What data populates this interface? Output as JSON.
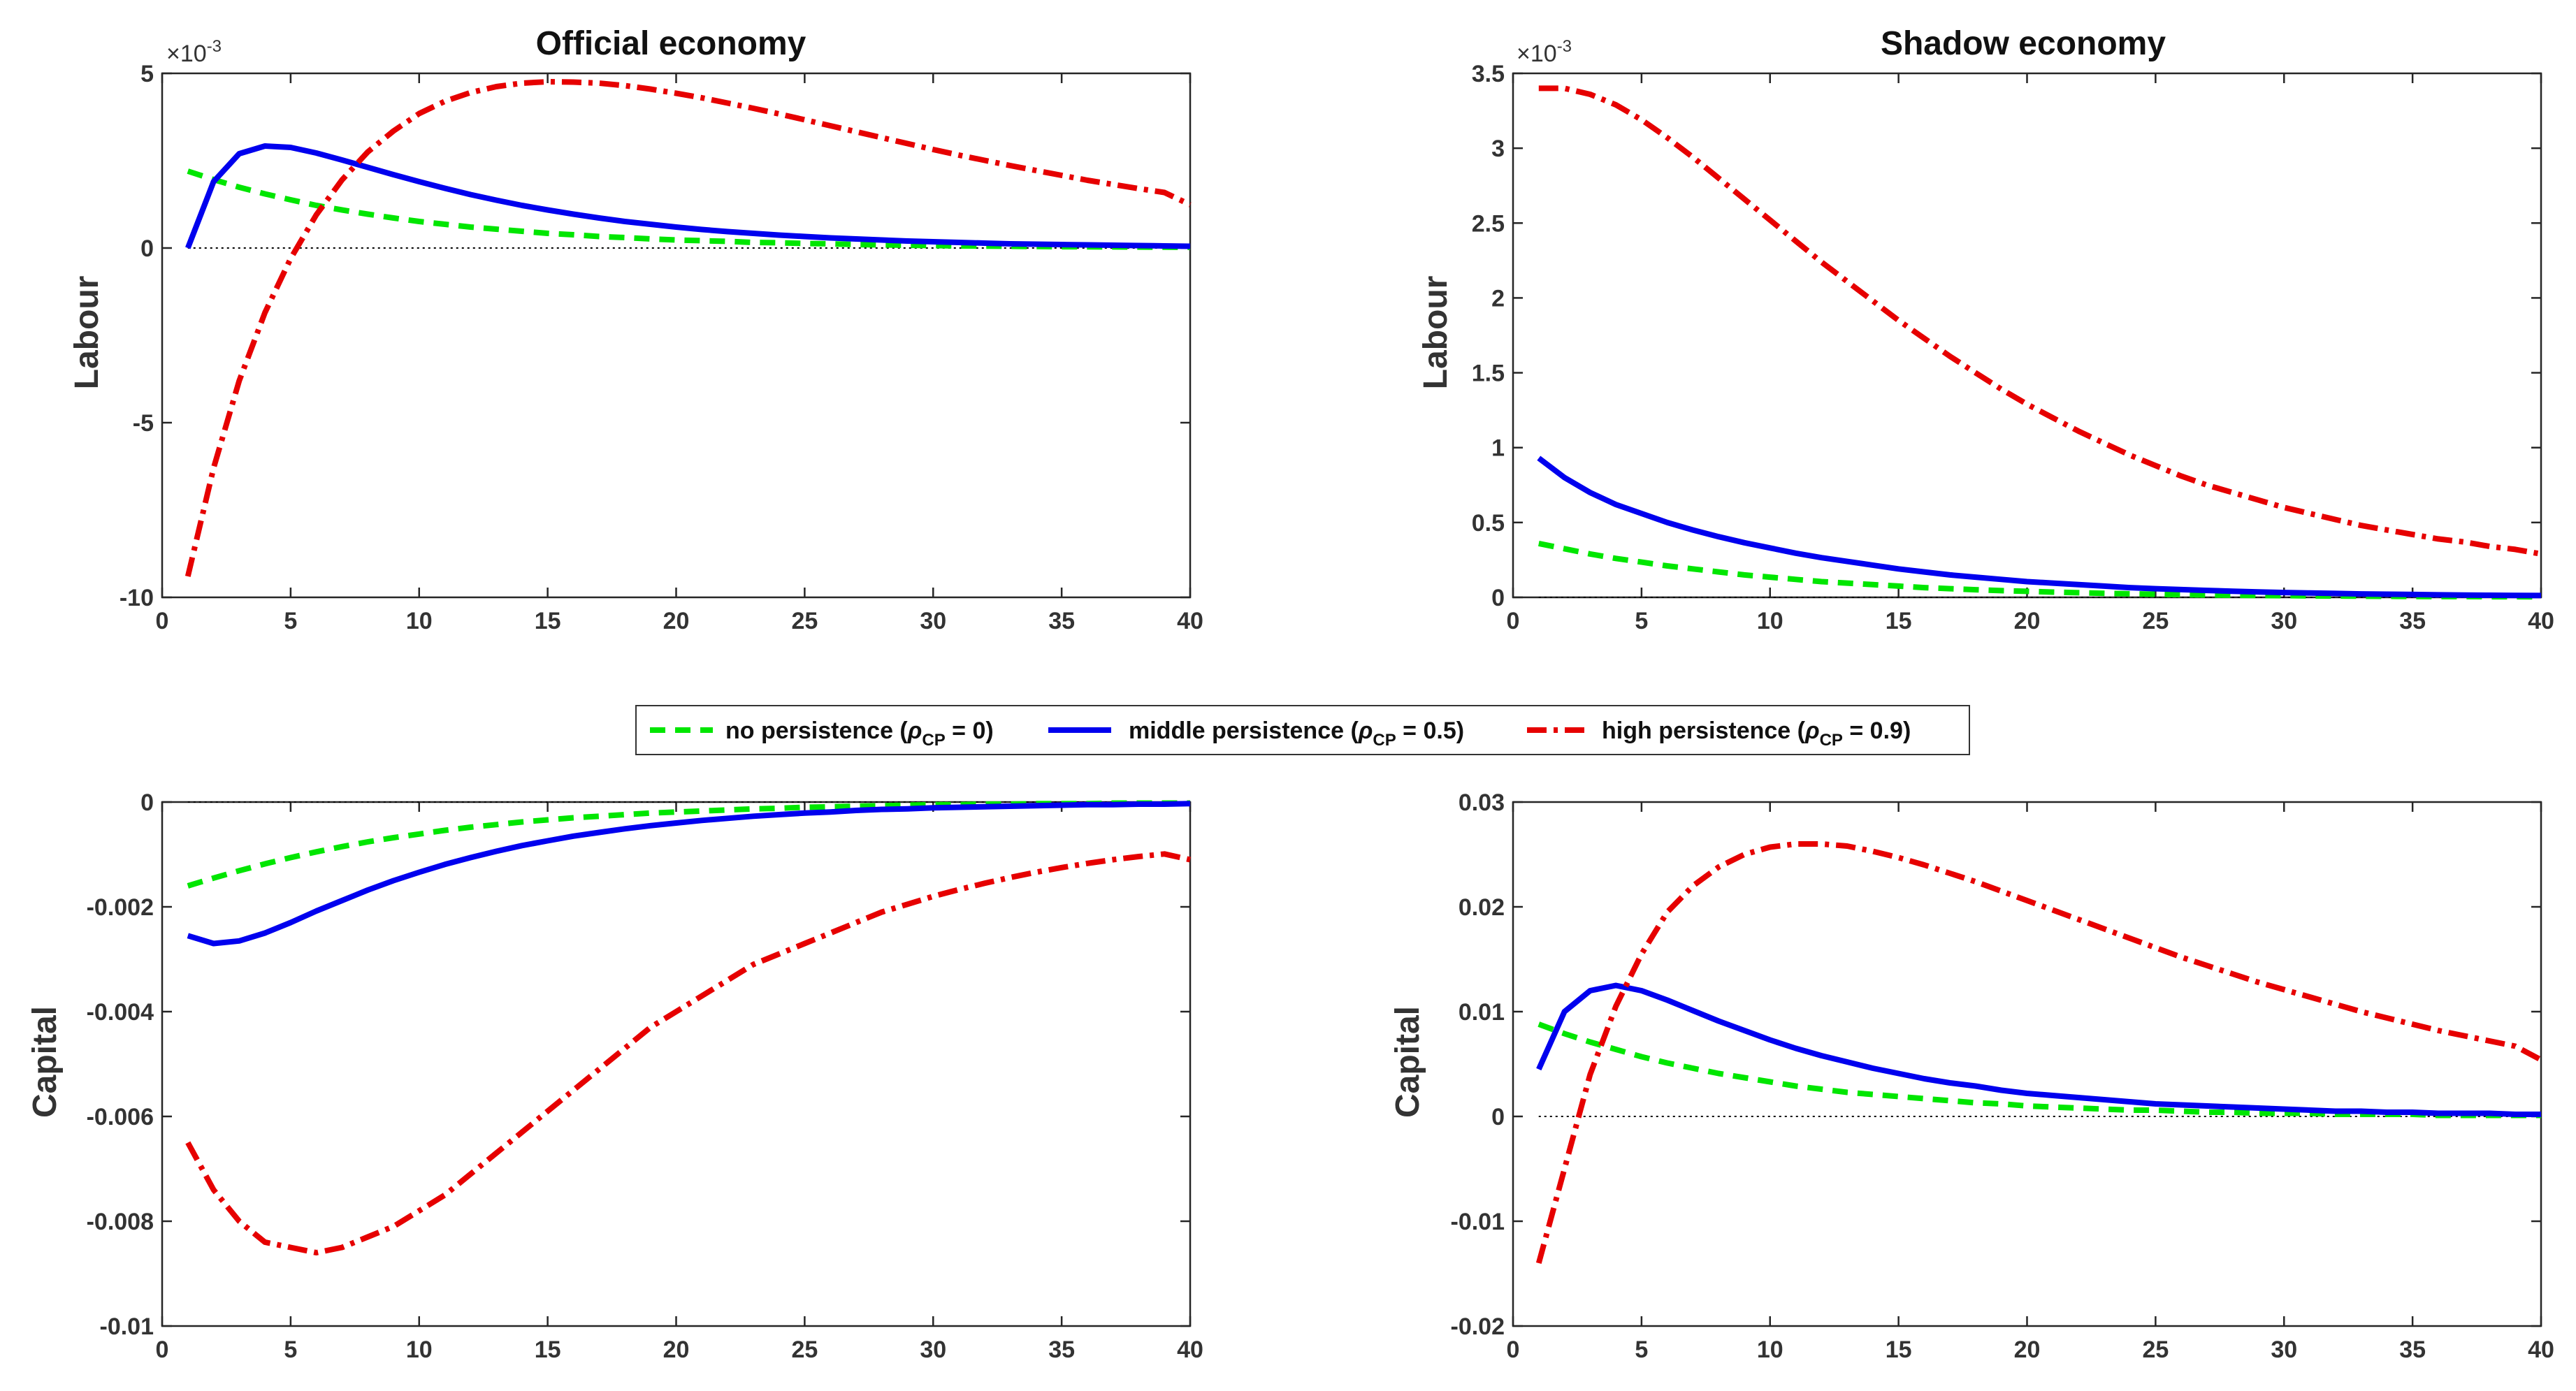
{
  "figure": {
    "legend": [
      {
        "name": "no persistence",
        "rho": "0",
        "color": "#00e600",
        "style": "dashed"
      },
      {
        "name": "middle persistence",
        "rho": "0.5",
        "color": "#0000ee",
        "style": "solid"
      },
      {
        "name": "high persistence",
        "rho": "0.9",
        "color": "#e60000",
        "style": "dashdot"
      }
    ],
    "legend_subscript": "CP"
  },
  "chart_data": [
    {
      "type": "line",
      "title": "Official economy",
      "xlabel": "",
      "ylabel": "Labour",
      "exponent_label": "×10",
      "exponent_power": "-3",
      "xlim": [
        0,
        40
      ],
      "ylim": [
        -10,
        5
      ],
      "xticks": [
        "0",
        "5",
        "10",
        "15",
        "20",
        "25",
        "30",
        "35",
        "40"
      ],
      "yticks": [
        "-10",
        "-5",
        "0",
        "5"
      ],
      "x": [
        1,
        2,
        3,
        4,
        5,
        6,
        7,
        8,
        9,
        10,
        11,
        12,
        13,
        14,
        15,
        16,
        17,
        18,
        19,
        20,
        21,
        22,
        23,
        24,
        25,
        26,
        27,
        28,
        29,
        30,
        31,
        32,
        33,
        34,
        35,
        36,
        37,
        38,
        39,
        40
      ],
      "series": [
        {
          "name": "no persistence",
          "values": [
            2.2,
            1.96,
            1.74,
            1.55,
            1.38,
            1.22,
            1.09,
            0.97,
            0.86,
            0.76,
            0.68,
            0.6,
            0.54,
            0.48,
            0.42,
            0.38,
            0.33,
            0.3,
            0.26,
            0.23,
            0.21,
            0.19,
            0.16,
            0.15,
            0.13,
            0.12,
            0.1,
            0.09,
            0.08,
            0.07,
            0.06,
            0.056,
            0.05,
            0.044,
            0.039,
            0.035,
            0.031,
            0.028,
            0.025,
            0.022
          ]
        },
        {
          "name": "middle persistence",
          "values": [
            0,
            1.9,
            2.7,
            2.92,
            2.88,
            2.72,
            2.52,
            2.31,
            2.1,
            1.9,
            1.71,
            1.53,
            1.37,
            1.22,
            1.09,
            0.97,
            0.86,
            0.76,
            0.68,
            0.6,
            0.53,
            0.47,
            0.42,
            0.37,
            0.33,
            0.29,
            0.26,
            0.23,
            0.2,
            0.18,
            0.16,
            0.14,
            0.12,
            0.11,
            0.1,
            0.09,
            0.08,
            0.07,
            0.06,
            0.05
          ]
        },
        {
          "name": "high persistence",
          "values": [
            -9.4,
            -6.3,
            -3.8,
            -1.85,
            -0.3,
            0.95,
            1.95,
            2.75,
            3.35,
            3.85,
            4.2,
            4.45,
            4.62,
            4.72,
            4.76,
            4.75,
            4.72,
            4.65,
            4.55,
            4.43,
            4.3,
            4.15,
            4.0,
            3.84,
            3.67,
            3.5,
            3.33,
            3.16,
            2.99,
            2.82,
            2.66,
            2.51,
            2.36,
            2.22,
            2.08,
            1.94,
            1.82,
            1.7,
            1.59,
            1.24
          ]
        }
      ]
    },
    {
      "type": "line",
      "title": "Shadow economy",
      "xlabel": "",
      "ylabel": "Labour",
      "exponent_label": "×10",
      "exponent_power": "-3",
      "xlim": [
        0,
        40
      ],
      "ylim": [
        0,
        3.5
      ],
      "xticks": [
        "0",
        "5",
        "10",
        "15",
        "20",
        "25",
        "30",
        "35",
        "40"
      ],
      "yticks": [
        "0",
        "0.5",
        "1",
        "1.5",
        "2",
        "2.5",
        "3",
        "3.5"
      ],
      "x": [
        1,
        2,
        3,
        4,
        5,
        6,
        7,
        8,
        9,
        10,
        11,
        12,
        13,
        14,
        15,
        16,
        17,
        18,
        19,
        20,
        21,
        22,
        23,
        24,
        25,
        26,
        27,
        28,
        29,
        30,
        31,
        32,
        33,
        34,
        35,
        36,
        37,
        38,
        39,
        40
      ],
      "series": [
        {
          "name": "no persistence",
          "values": [
            0.36,
            0.325,
            0.29,
            0.26,
            0.235,
            0.21,
            0.19,
            0.17,
            0.15,
            0.135,
            0.12,
            0.105,
            0.095,
            0.085,
            0.075,
            0.065,
            0.058,
            0.051,
            0.045,
            0.04,
            0.035,
            0.031,
            0.027,
            0.024,
            0.021,
            0.018,
            0.016,
            0.014,
            0.012,
            0.011,
            0.01,
            0.009,
            0.008,
            0.007,
            0.006,
            0.005,
            0.005,
            0.004,
            0.004,
            0.003
          ]
        },
        {
          "name": "middle persistence",
          "values": [
            0.93,
            0.8,
            0.7,
            0.62,
            0.56,
            0.5,
            0.45,
            0.405,
            0.365,
            0.33,
            0.295,
            0.265,
            0.24,
            0.215,
            0.19,
            0.17,
            0.15,
            0.135,
            0.12,
            0.105,
            0.095,
            0.085,
            0.075,
            0.065,
            0.058,
            0.052,
            0.046,
            0.041,
            0.036,
            0.032,
            0.029,
            0.026,
            0.023,
            0.021,
            0.019,
            0.017,
            0.015,
            0.014,
            0.013,
            0.012
          ]
        },
        {
          "name": "high persistence",
          "values": [
            3.4,
            3.4,
            3.36,
            3.29,
            3.19,
            3.07,
            2.94,
            2.8,
            2.66,
            2.52,
            2.38,
            2.24,
            2.11,
            1.98,
            1.85,
            1.73,
            1.61,
            1.5,
            1.39,
            1.29,
            1.2,
            1.11,
            1.03,
            0.95,
            0.88,
            0.81,
            0.75,
            0.7,
            0.65,
            0.6,
            0.56,
            0.52,
            0.48,
            0.45,
            0.42,
            0.39,
            0.37,
            0.34,
            0.32,
            0.29
          ]
        }
      ]
    },
    {
      "type": "line",
      "title": "",
      "xlabel": "",
      "ylabel": "Capital",
      "xlim": [
        0,
        40
      ],
      "ylim": [
        -0.01,
        0
      ],
      "xticks": [
        "0",
        "5",
        "10",
        "15",
        "20",
        "25",
        "30",
        "35",
        "40"
      ],
      "yticks": [
        "-0.01",
        "-0.008",
        "-0.006",
        "-0.004",
        "-0.002",
        "0"
      ],
      "x": [
        1,
        2,
        3,
        4,
        5,
        6,
        7,
        8,
        9,
        10,
        11,
        12,
        13,
        14,
        15,
        16,
        17,
        18,
        19,
        20,
        21,
        22,
        23,
        24,
        25,
        26,
        27,
        28,
        29,
        30,
        31,
        32,
        33,
        34,
        35,
        36,
        37,
        38,
        39,
        40
      ],
      "series": [
        {
          "name": "no persistence",
          "values": [
            -0.0016,
            -0.00145,
            -0.00131,
            -0.00118,
            -0.00106,
            -0.00095,
            -0.00085,
            -0.00076,
            -0.00068,
            -0.00061,
            -0.00054,
            -0.00048,
            -0.00043,
            -0.00038,
            -0.00034,
            -0.0003,
            -0.00027,
            -0.00024,
            -0.00021,
            -0.00019,
            -0.00017,
            -0.00015,
            -0.00013,
            -0.00012,
            -0.0001,
            -9e-05,
            -8e-05,
            -7e-05,
            -6e-05,
            -5e-05,
            -5e-05,
            -4e-05,
            -4e-05,
            -3e-05,
            -3e-05,
            -3e-05,
            -2e-05,
            -2e-05,
            -2e-05,
            -2e-05
          ]
        },
        {
          "name": "middle persistence",
          "values": [
            -0.00255,
            -0.0027,
            -0.00265,
            -0.0025,
            -0.0023,
            -0.00208,
            -0.00188,
            -0.00168,
            -0.0015,
            -0.00134,
            -0.00119,
            -0.00106,
            -0.00094,
            -0.00083,
            -0.00074,
            -0.00065,
            -0.00058,
            -0.00051,
            -0.00045,
            -0.0004,
            -0.00035,
            -0.00031,
            -0.00027,
            -0.00024,
            -0.00021,
            -0.00019,
            -0.00016,
            -0.00014,
            -0.00013,
            -0.00011,
            -0.0001,
            -9e-05,
            -8e-05,
            -7e-05,
            -6e-05,
            -5e-05,
            -5e-05,
            -4e-05,
            -4e-05,
            -3e-05
          ]
        },
        {
          "name": "high persistence",
          "values": [
            -0.0065,
            -0.0074,
            -0.008,
            -0.0084,
            -0.0085,
            -0.0086,
            -0.0085,
            -0.0083,
            -0.0081,
            -0.0078,
            -0.0075,
            -0.0071,
            -0.0067,
            -0.0063,
            -0.0059,
            -0.0055,
            -0.0051,
            -0.0047,
            -0.0043,
            -0.004,
            -0.0037,
            -0.0034,
            -0.0031,
            -0.0029,
            -0.0027,
            -0.0025,
            -0.0023,
            -0.0021,
            -0.00195,
            -0.0018,
            -0.00167,
            -0.00155,
            -0.00144,
            -0.00134,
            -0.00125,
            -0.00117,
            -0.0011,
            -0.00104,
            -0.00099,
            -0.0011
          ]
        }
      ]
    },
    {
      "type": "line",
      "title": "",
      "xlabel": "",
      "ylabel": "Capital",
      "xlim": [
        0,
        40
      ],
      "ylim": [
        -0.02,
        0.03
      ],
      "xticks": [
        "0",
        "5",
        "10",
        "15",
        "20",
        "25",
        "30",
        "35",
        "40"
      ],
      "yticks": [
        "-0.02",
        "-0.01",
        "0",
        "0.01",
        "0.02",
        "0.03"
      ],
      "x": [
        1,
        2,
        3,
        4,
        5,
        6,
        7,
        8,
        9,
        10,
        11,
        12,
        13,
        14,
        15,
        16,
        17,
        18,
        19,
        20,
        21,
        22,
        23,
        24,
        25,
        26,
        27,
        28,
        29,
        30,
        31,
        32,
        33,
        34,
        35,
        36,
        37,
        38,
        39,
        40
      ],
      "series": [
        {
          "name": "no persistence",
          "values": [
            0.0088,
            0.0079,
            0.0071,
            0.0064,
            0.0057,
            0.0051,
            0.0046,
            0.0041,
            0.0037,
            0.0033,
            0.0029,
            0.0026,
            0.0023,
            0.0021,
            0.0019,
            0.0017,
            0.0015,
            0.0013,
            0.0012,
            0.001,
            0.0009,
            0.0008,
            0.0007,
            0.0006,
            0.0006,
            0.0005,
            0.0004,
            0.0004,
            0.0003,
            0.0003,
            0.0003,
            0.0002,
            0.0002,
            0.0002,
            0.0002,
            0.0001,
            0.0001,
            0.0001,
            0.0001,
            0.0001
          ]
        },
        {
          "name": "middle persistence",
          "values": [
            0.0045,
            0.01,
            0.012,
            0.0125,
            0.012,
            0.0111,
            0.0101,
            0.0091,
            0.0082,
            0.0073,
            0.0065,
            0.0058,
            0.0052,
            0.0046,
            0.0041,
            0.0036,
            0.0032,
            0.0029,
            0.0025,
            0.0022,
            0.002,
            0.0018,
            0.0016,
            0.0014,
            0.0012,
            0.0011,
            0.001,
            0.0009,
            0.0008,
            0.0007,
            0.0006,
            0.0005,
            0.0005,
            0.0004,
            0.0004,
            0.0003,
            0.0003,
            0.0003,
            0.0002,
            0.0002
          ]
        },
        {
          "name": "high persistence",
          "values": [
            -0.014,
            -0.005,
            0.004,
            0.0105,
            0.0155,
            0.0195,
            0.022,
            0.0238,
            0.025,
            0.0257,
            0.026,
            0.026,
            0.0258,
            0.0253,
            0.0247,
            0.024,
            0.0232,
            0.0224,
            0.0215,
            0.0206,
            0.0197,
            0.0188,
            0.0179,
            0.017,
            0.0161,
            0.0152,
            0.0144,
            0.0136,
            0.0128,
            0.0121,
            0.0114,
            0.0107,
            0.01,
            0.0094,
            0.0088,
            0.0082,
            0.0077,
            0.0072,
            0.0067,
            0.0054
          ]
        }
      ]
    }
  ]
}
